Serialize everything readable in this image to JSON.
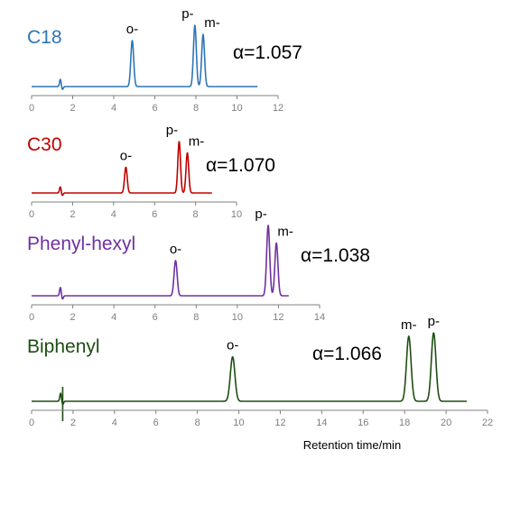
{
  "chart_data": [
    {
      "type": "line",
      "title": "C18",
      "color": "#2E75B6",
      "xlim": [
        0,
        12
      ],
      "xticks": [
        "0",
        "2",
        "4",
        "6",
        "8",
        "10",
        "12"
      ],
      "series": [
        {
          "name": "C18",
          "run_end": 11.0
        }
      ],
      "peaks": [
        {
          "label": "o-",
          "x": 4.9,
          "height": 0.75
        },
        {
          "label": "p-",
          "x": 7.95,
          "height": 1.0
        },
        {
          "label": "m-",
          "x": 8.35,
          "height": 0.85
        }
      ],
      "annotation": "α=1.057"
    },
    {
      "type": "line",
      "title": "C30",
      "color": "#C00000",
      "xlim": [
        0,
        10
      ],
      "xticks": [
        "0",
        "2",
        "4",
        "6",
        "8",
        "10"
      ],
      "series": [
        {
          "name": "C30",
          "run_end": 8.8
        }
      ],
      "peaks": [
        {
          "label": "o-",
          "x": 4.6,
          "height": 0.5
        },
        {
          "label": "p-",
          "x": 7.2,
          "height": 1.0
        },
        {
          "label": "m-",
          "x": 7.6,
          "height": 0.78
        }
      ],
      "annotation": "α=1.070"
    },
    {
      "type": "line",
      "title": "Phenyl-hexyl",
      "color": "#7030A0",
      "xlim": [
        0,
        14
      ],
      "xticks": [
        "0",
        "2",
        "4",
        "6",
        "8",
        "10",
        "12",
        "14"
      ],
      "series": [
        {
          "name": "Phenyl-hexyl",
          "run_end": 12.5
        }
      ],
      "peaks": [
        {
          "label": "o-",
          "x": 7.0,
          "height": 0.5
        },
        {
          "label": "p-",
          "x": 11.5,
          "height": 1.0
        },
        {
          "label": "m-",
          "x": 11.9,
          "height": 0.75
        }
      ],
      "annotation": "α=1.038"
    },
    {
      "type": "line",
      "title": "Biphenyl",
      "color": "#1E4D12",
      "xlim": [
        0,
        22
      ],
      "xticks": [
        "0",
        "2",
        "4",
        "6",
        "8",
        "10",
        "12",
        "14",
        "16",
        "18",
        "20",
        "22"
      ],
      "xlabel": "Retention time/min",
      "series": [
        {
          "name": "Biphenyl",
          "run_end": 21.0
        }
      ],
      "peaks": [
        {
          "label": "o-",
          "x": 9.7,
          "height": 0.65
        },
        {
          "label": "m-",
          "x": 18.2,
          "height": 0.95
        },
        {
          "label": "p-",
          "x": 19.4,
          "height": 1.0
        }
      ],
      "annotation": "α=1.066"
    }
  ]
}
